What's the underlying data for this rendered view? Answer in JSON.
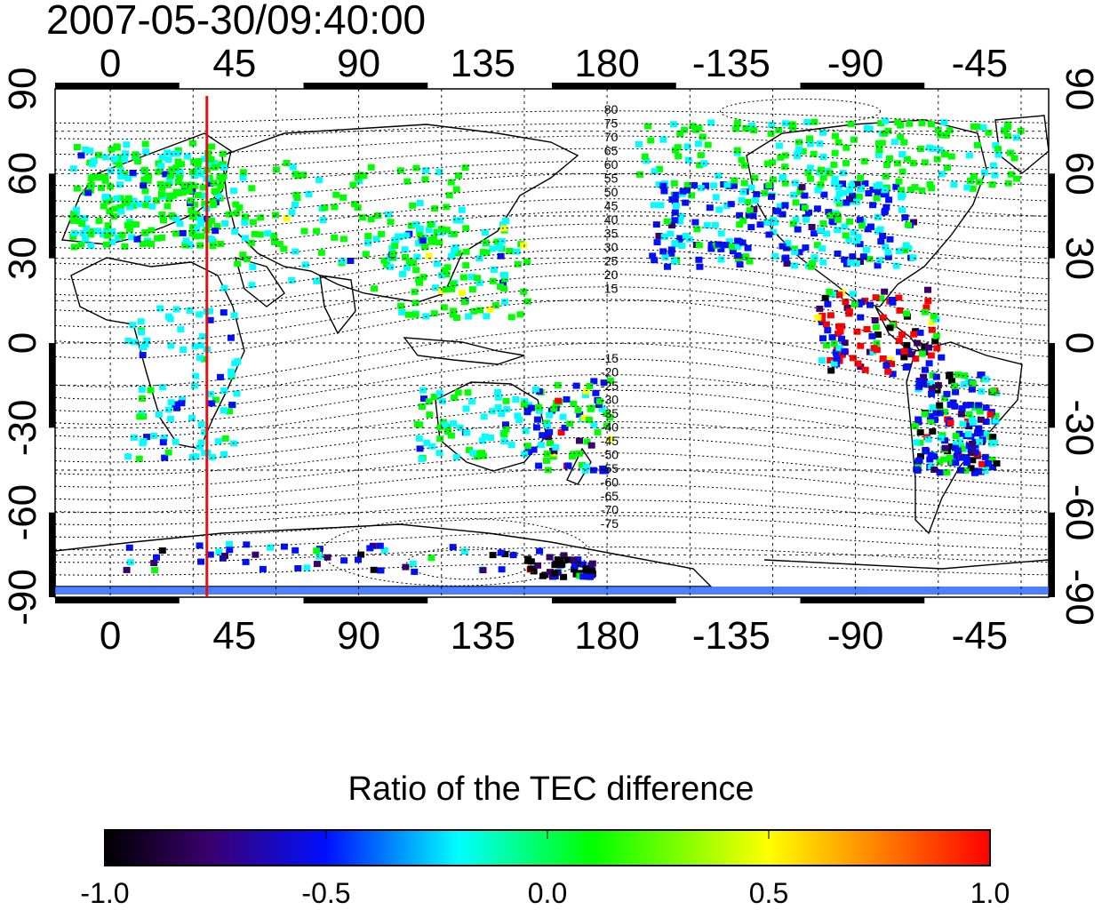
{
  "header": {
    "timestamp": "2007-05-30/09:40:00"
  },
  "map": {
    "lon_ticks": [
      {
        "value": 0,
        "label": "0"
      },
      {
        "value": 45,
        "label": "45"
      },
      {
        "value": 90,
        "label": "90"
      },
      {
        "value": 135,
        "label": "135"
      },
      {
        "value": 180,
        "label": "180"
      },
      {
        "value": -135,
        "label": "-135"
      },
      {
        "value": -90,
        "label": "-90"
      },
      {
        "value": -45,
        "label": "-45"
      }
    ],
    "lat_ticks": [
      {
        "value": 90,
        "label": "90"
      },
      {
        "value": 60,
        "label": "60"
      },
      {
        "value": 30,
        "label": "30"
      },
      {
        "value": 0,
        "label": "0"
      },
      {
        "value": -30,
        "label": "-30"
      },
      {
        "value": -60,
        "label": "-60"
      },
      {
        "value": -90,
        "label": "-90"
      }
    ],
    "lon_range": [
      -20,
      340
    ],
    "lat_range": [
      -90,
      90
    ],
    "grid": true,
    "marker_line": {
      "lon": 35,
      "color": "#e01010"
    },
    "contour_labels_north": [
      "80",
      "75",
      "70",
      "65",
      "60",
      "55",
      "50",
      "45",
      "40",
      "35",
      "30",
      "25",
      "20",
      "15"
    ],
    "contour_labels_south": [
      "-15",
      "-20",
      "-25",
      "-30",
      "-35",
      "-40",
      "-45",
      "-50",
      "-55",
      "-60",
      "-65",
      "-70",
      "-75"
    ]
  },
  "colorbar": {
    "title": "Ratio of the TEC difference",
    "ticks": [
      "-1.0",
      "-0.5",
      "0.0",
      "0.5",
      "1.0"
    ],
    "range": [
      -1.0,
      1.0
    ],
    "palette": [
      "#000000",
      "#3a0070",
      "#0010ff",
      "#00ffff",
      "#00ff00",
      "#ffff00",
      "#ff0000"
    ]
  }
}
